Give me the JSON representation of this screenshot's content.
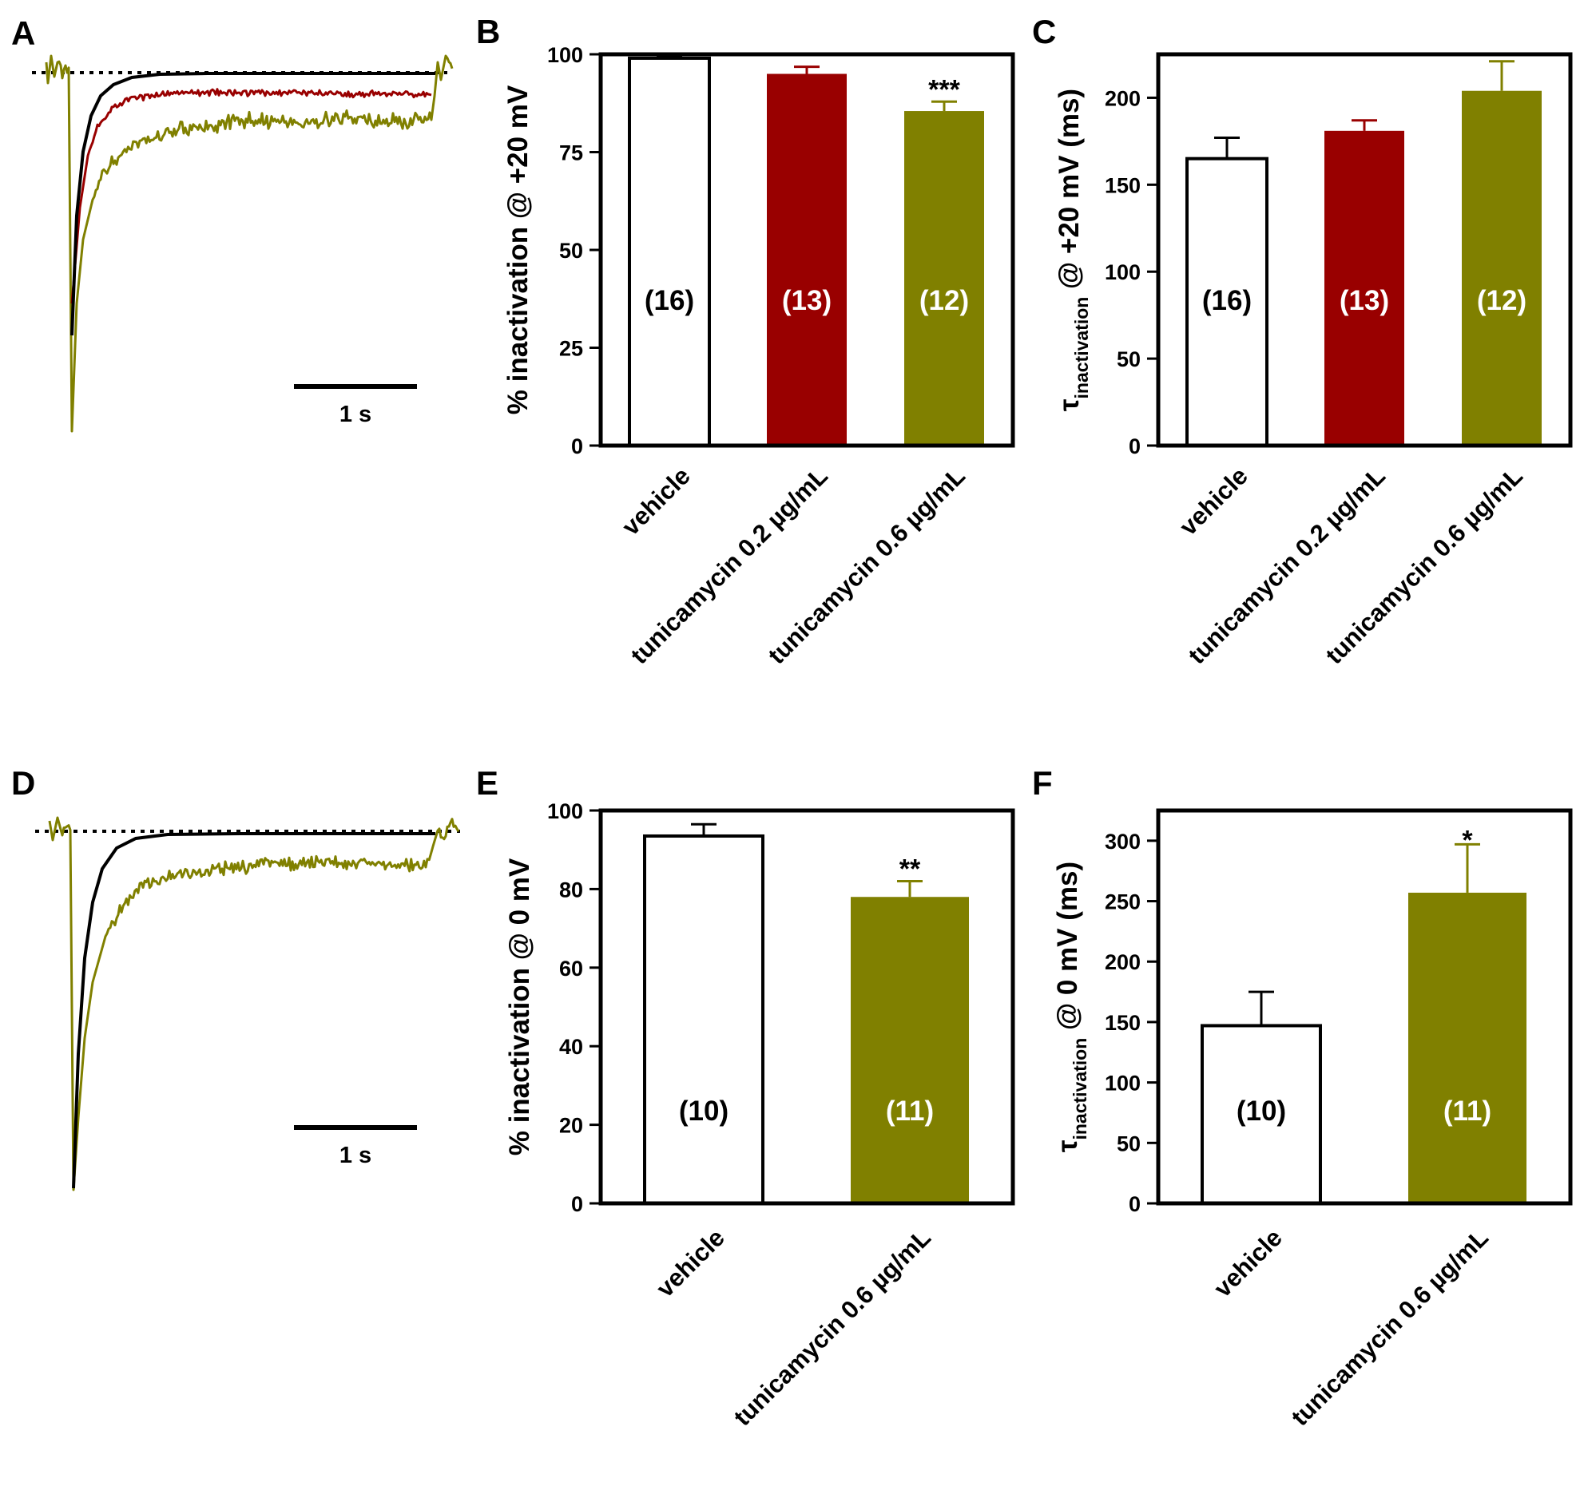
{
  "colors": {
    "vehicle": "#ffffff",
    "tun02": "#990000",
    "tun06": "#808000",
    "axis": "#000000",
    "trace_black": "#000000"
  },
  "panels": {
    "A": {
      "letter": "A",
      "scale_label": "1 s"
    },
    "D": {
      "letter": "D",
      "scale_label": "1 s"
    }
  },
  "chart_data": [
    {
      "id": "B",
      "panel_letter": "B",
      "type": "bar",
      "categories": [
        "vehicle",
        "tunicamycin 0.2 µg/mL",
        "tunicamycin 0.6 µg/mL"
      ],
      "values": [
        99,
        95,
        85.5
      ],
      "errors": [
        0.5,
        1.8,
        2.4
      ],
      "n_labels": [
        "(16)",
        "(13)",
        "(12)"
      ],
      "significance": [
        "",
        "",
        "***"
      ],
      "bar_colors": [
        "#ffffff",
        "#990000",
        "#808000"
      ],
      "ylabel": "% inactivation @ +20 mV",
      "ylabel_sub": "",
      "ylabel_tail": "",
      "ylim": [
        0,
        100
      ],
      "yticks": [
        0,
        25,
        50,
        75,
        100
      ],
      "title": "",
      "xlabel": ""
    },
    {
      "id": "C",
      "panel_letter": "C",
      "type": "bar",
      "categories": [
        "vehicle",
        "tunicamycin 0.2 µg/mL",
        "tunicamycin 0.6 µg/mL"
      ],
      "values": [
        165,
        181,
        204
      ],
      "errors": [
        12,
        6,
        17
      ],
      "n_labels": [
        "(16)",
        "(13)",
        "(12)"
      ],
      "significance": [
        "",
        "",
        ""
      ],
      "bar_colors": [
        "#ffffff",
        "#990000",
        "#808000"
      ],
      "ylabel": "τ",
      "ylabel_sub": "inactivation",
      "ylabel_tail": " @ +20 mV (ms)",
      "ylim": [
        0,
        225
      ],
      "yticks": [
        0,
        50,
        100,
        150,
        200
      ],
      "title": "",
      "xlabel": ""
    },
    {
      "id": "E",
      "panel_letter": "E",
      "type": "bar",
      "categories": [
        "vehicle",
        "tunicamycin 0.6 µg/mL"
      ],
      "values": [
        93.5,
        78
      ],
      "errors": [
        3,
        4
      ],
      "n_labels": [
        "(10)",
        "(11)"
      ],
      "significance": [
        "",
        "**"
      ],
      "bar_colors": [
        "#ffffff",
        "#808000"
      ],
      "ylabel": "% inactivation @ 0 mV",
      "ylabel_sub": "",
      "ylabel_tail": "",
      "ylim": [
        0,
        100
      ],
      "yticks": [
        0,
        20,
        40,
        60,
        80,
        100
      ],
      "title": "",
      "xlabel": ""
    },
    {
      "id": "F",
      "panel_letter": "F",
      "type": "bar",
      "categories": [
        "vehicle",
        "tunicamycin 0.6 µg/mL"
      ],
      "values": [
        147,
        257
      ],
      "errors": [
        28,
        40
      ],
      "n_labels": [
        "(10)",
        "(11)"
      ],
      "significance": [
        "",
        "*"
      ],
      "bar_colors": [
        "#ffffff",
        "#808000"
      ],
      "ylabel": "τ",
      "ylabel_sub": "inactivation",
      "ylabel_tail": " @ 0 mV (ms)",
      "ylim": [
        0,
        325
      ],
      "yticks": [
        0,
        50,
        100,
        150,
        200,
        250,
        300
      ],
      "title": "",
      "xlabel": ""
    }
  ]
}
